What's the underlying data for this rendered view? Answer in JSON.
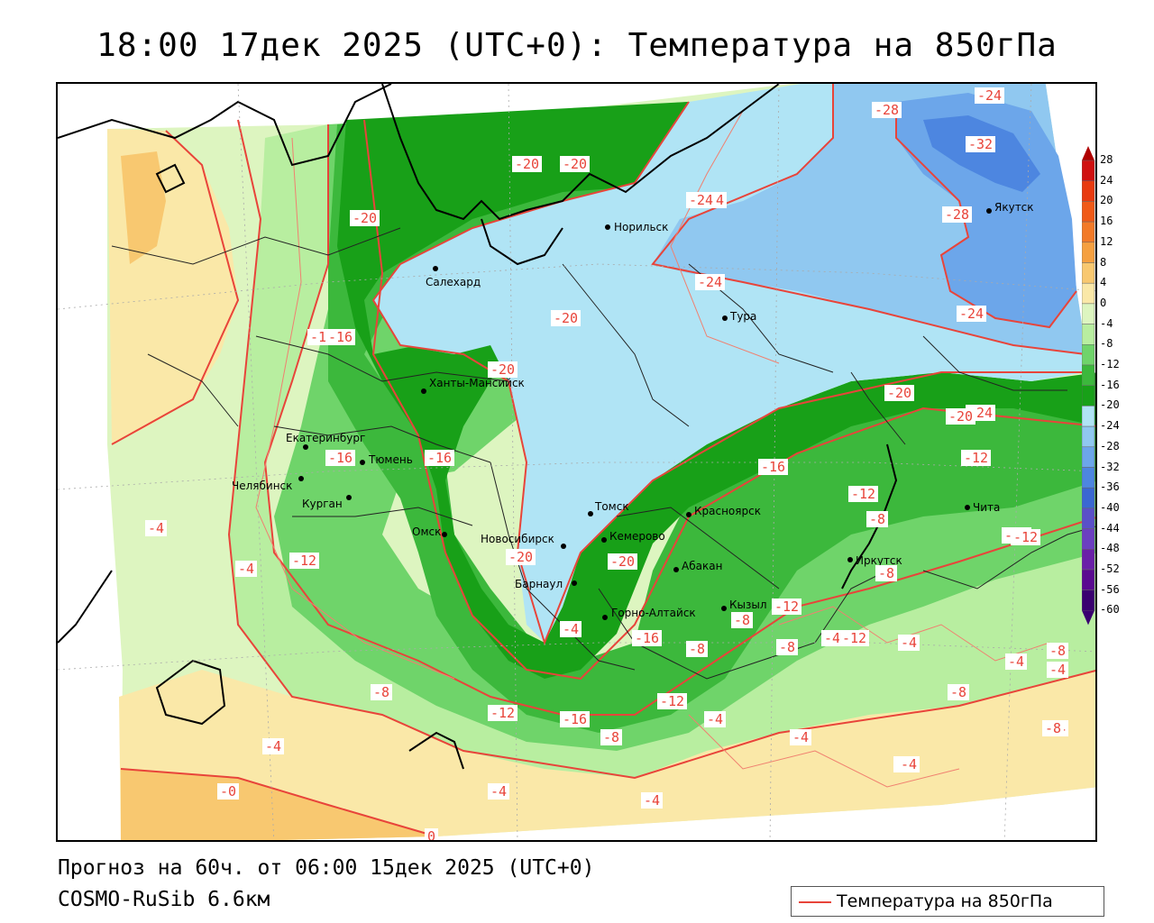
{
  "header": {
    "title": "18:00 17дек 2025 (UTC+0): Температура на 850гПа"
  },
  "footer": {
    "forecast": "Прогноз на 60ч. от 06:00 15дек 2025 (UTC+0)",
    "model": "COSMO-RuSib 6.6км"
  },
  "legend": {
    "label": "Температура на 850гПа",
    "line_color": "#e8443a"
  },
  "colorbar": {
    "ticks": [
      "28",
      "24",
      "20",
      "16",
      "12",
      "8",
      "4",
      "0",
      "-4",
      "-8",
      "-12",
      "-16",
      "-20",
      "-24",
      "-28",
      "-32",
      "-36",
      "-40",
      "-44",
      "-48",
      "-52",
      "-56",
      "-60"
    ],
    "colors": [
      "#b00000",
      "#d01010",
      "#e83a10",
      "#f05a18",
      "#f27a28",
      "#f5a040",
      "#f8c870",
      "#fae8a8",
      "#ddf5c0",
      "#b8eea0",
      "#6fd46a",
      "#3cb83c",
      "#18a018",
      "#b0e4f5",
      "#90c8f0",
      "#6ca6ea",
      "#4d86e0",
      "#3a68d2",
      "#5a50c8",
      "#6b3fc0",
      "#6a20a8",
      "#5a0a90",
      "#3a0070"
    ]
  },
  "cities": [
    {
      "name": "Салехард"
    },
    {
      "name": "Норильск"
    },
    {
      "name": "Тура"
    },
    {
      "name": "Якутск"
    },
    {
      "name": "Ханты-Мансийск"
    },
    {
      "name": "Екатеринбург"
    },
    {
      "name": "Тюмень"
    },
    {
      "name": "Челябинск"
    },
    {
      "name": "Курган"
    },
    {
      "name": "Омск"
    },
    {
      "name": "Новосибирск"
    },
    {
      "name": "Томск"
    },
    {
      "name": "Кемерово"
    },
    {
      "name": "Барнаул"
    },
    {
      "name": "Горно-Алтайск"
    },
    {
      "name": "Абакан"
    },
    {
      "name": "Кызыл"
    },
    {
      "name": "Красноярск"
    },
    {
      "name": "Иркутск"
    },
    {
      "name": "Чита"
    }
  ],
  "contour_labels": [
    "-24",
    "-28",
    "-32",
    "-28",
    "-24",
    "-20",
    "-20",
    "-20",
    "-24",
    "-24",
    "-20",
    "-24",
    "-16",
    "-20",
    "-16",
    "-20",
    "-20",
    "-24",
    "-20",
    "-16",
    "-16",
    "-12",
    "-12",
    "-16",
    "-12",
    "-12",
    "-8",
    "-8",
    "-4",
    "-4",
    "-4",
    "-8",
    "-12",
    "-8",
    "-4",
    "-4",
    "-8",
    "-12",
    "-12",
    "-16",
    "-8",
    "-4",
    "-4",
    "-4",
    "-4",
    "-4",
    "-4",
    "-0",
    "0",
    "-4",
    "-8",
    "-20",
    "-20",
    "-16",
    "-12",
    "-8",
    "-4",
    "-4",
    "-4",
    "-12",
    "-8",
    "-8"
  ]
}
